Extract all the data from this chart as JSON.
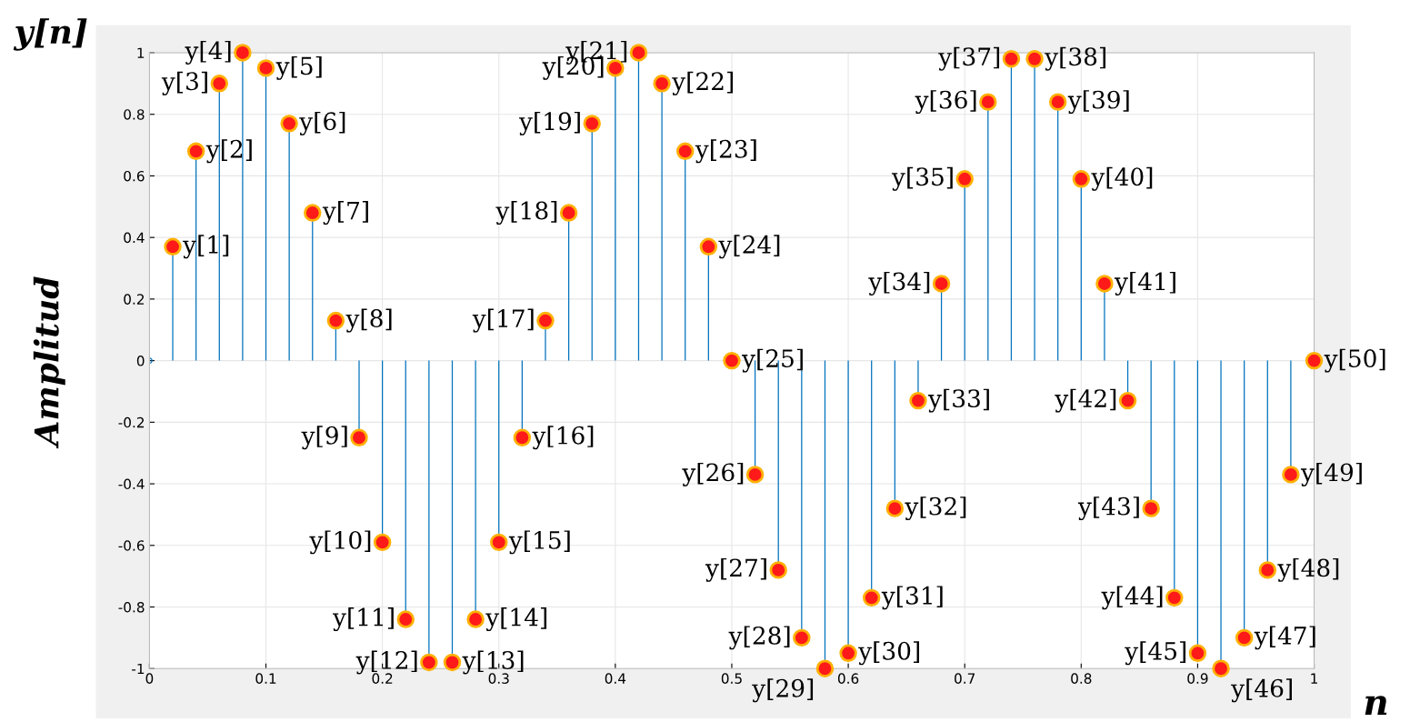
{
  "chart_data": {
    "type": "lollipop",
    "title": "y[n]",
    "xlabel": "n",
    "ylabel": "Amplitud",
    "x": [
      0,
      0.02,
      0.04,
      0.06,
      0.08,
      0.1,
      0.12,
      0.14,
      0.16,
      0.18,
      0.2,
      0.22,
      0.24,
      0.26,
      0.28,
      0.3,
      0.32,
      0.34,
      0.36,
      0.38,
      0.4,
      0.42,
      0.44,
      0.46,
      0.48,
      0.5,
      0.52,
      0.54,
      0.56,
      0.58,
      0.6,
      0.62,
      0.64,
      0.66,
      0.68,
      0.7,
      0.72,
      0.74,
      0.76,
      0.78,
      0.8,
      0.82,
      0.84,
      0.86,
      0.88,
      0.9,
      0.92,
      0.94,
      0.96,
      0.98,
      1
    ],
    "values": [
      0,
      0.37,
      0.68,
      0.9,
      1.0,
      0.95,
      0.77,
      0.48,
      0.13,
      -0.25,
      -0.59,
      -0.84,
      -0.98,
      -0.98,
      -0.84,
      -0.59,
      -0.25,
      0.13,
      0.48,
      0.77,
      0.95,
      1.0,
      0.9,
      0.68,
      0.37,
      0,
      -0.37,
      -0.68,
      -0.9,
      -1.0,
      -0.95,
      -0.77,
      -0.48,
      -0.13,
      0.25,
      0.59,
      0.84,
      0.98,
      0.98,
      0.84,
      0.59,
      0.25,
      -0.13,
      -0.48,
      -0.77,
      -0.95,
      -1.0,
      -0.9,
      -0.68,
      -0.37,
      0
    ],
    "color": "#0072bd",
    "marker": "circle",
    "grid": true,
    "xlim": [
      0,
      1
    ],
    "ylim": [
      -1,
      1
    ],
    "xticks": [
      0,
      0.1,
      0.2,
      0.3,
      0.4,
      0.5,
      0.6,
      0.7,
      0.8,
      0.9,
      1
    ],
    "yticks": [
      -1,
      -0.8,
      -0.6,
      -0.4,
      -0.2,
      0,
      0.2,
      0.4,
      0.6,
      0.8,
      1
    ],
    "annotations": [
      {
        "text": "y[1]",
        "x": 0.02,
        "y": 0.37
      },
      {
        "text": "y[2]",
        "x": 0.04,
        "y": 0.68
      },
      {
        "text": "y[3]",
        "x": 0.06,
        "y": 0.9
      },
      {
        "text": "y[4]",
        "x": 0.08,
        "y": 1.0
      },
      {
        "text": "y[5]",
        "x": 0.1,
        "y": 0.95
      },
      {
        "text": "y[6]",
        "x": 0.12,
        "y": 0.77
      },
      {
        "text": "y[7]",
        "x": 0.14,
        "y": 0.48
      },
      {
        "text": "y[8]",
        "x": 0.16,
        "y": 0.13
      },
      {
        "text": "y[9]",
        "x": 0.18,
        "y": -0.25
      },
      {
        "text": "y[10]",
        "x": 0.2,
        "y": -0.59
      },
      {
        "text": "y[11]",
        "x": 0.22,
        "y": -0.84
      },
      {
        "text": "y[12]",
        "x": 0.24,
        "y": -0.98
      },
      {
        "text": "y[13]",
        "x": 0.26,
        "y": -0.98
      },
      {
        "text": "y[14]",
        "x": 0.28,
        "y": -0.84
      },
      {
        "text": "y[15]",
        "x": 0.3,
        "y": -0.59
      },
      {
        "text": "y[16]",
        "x": 0.32,
        "y": -0.25
      },
      {
        "text": "y[17]",
        "x": 0.34,
        "y": 0.13
      },
      {
        "text": "y[18]",
        "x": 0.36,
        "y": 0.48
      },
      {
        "text": "y[19]",
        "x": 0.38,
        "y": 0.77
      },
      {
        "text": "y[20]",
        "x": 0.4,
        "y": 0.95
      },
      {
        "text": "y[21]",
        "x": 0.42,
        "y": 1.0
      },
      {
        "text": "y[22]",
        "x": 0.44,
        "y": 0.9
      },
      {
        "text": "y[23]",
        "x": 0.46,
        "y": 0.68
      },
      {
        "text": "y[24]",
        "x": 0.48,
        "y": 0.37
      },
      {
        "text": "y[25]",
        "x": 0.5,
        "y": 0
      },
      {
        "text": "y[26]",
        "x": 0.52,
        "y": -0.37
      },
      {
        "text": "y[27]",
        "x": 0.54,
        "y": -0.68
      },
      {
        "text": "y[28]",
        "x": 0.56,
        "y": -0.9
      },
      {
        "text": "y[29]",
        "x": 0.58,
        "y": -1.0
      },
      {
        "text": "y[30]",
        "x": 0.6,
        "y": -0.95
      },
      {
        "text": "y[31]",
        "x": 0.62,
        "y": -0.77
      },
      {
        "text": "y[32]",
        "x": 0.64,
        "y": -0.48
      },
      {
        "text": "y[33]",
        "x": 0.66,
        "y": -0.13
      },
      {
        "text": "y[34]",
        "x": 0.68,
        "y": 0.25
      },
      {
        "text": "y[35]",
        "x": 0.7,
        "y": 0.59
      },
      {
        "text": "y[36]",
        "x": 0.72,
        "y": 0.84
      },
      {
        "text": "y[37]",
        "x": 0.74,
        "y": 0.98
      },
      {
        "text": "y[38]",
        "x": 0.76,
        "y": 0.98
      },
      {
        "text": "y[39]",
        "x": 0.78,
        "y": 0.84
      },
      {
        "text": "y[40]",
        "x": 0.8,
        "y": 0.59
      },
      {
        "text": "y[41]",
        "x": 0.82,
        "y": 0.25
      },
      {
        "text": "y[42]",
        "x": 0.84,
        "y": -0.13
      },
      {
        "text": "y[43]",
        "x": 0.86,
        "y": -0.48
      },
      {
        "text": "y[44]",
        "x": 0.88,
        "y": -0.77
      },
      {
        "text": "y[45]",
        "x": 0.9,
        "y": -0.95
      },
      {
        "text": "y[46]",
        "x": 0.92,
        "y": -1.0
      },
      {
        "text": "y[47]",
        "x": 0.94,
        "y": -0.9
      },
      {
        "text": "y[48]",
        "x": 0.96,
        "y": -0.68
      },
      {
        "text": "y[49]",
        "x": 0.98,
        "y": -0.37
      },
      {
        "text": "y[50]",
        "x": 1,
        "y": 0
      }
    ]
  }
}
